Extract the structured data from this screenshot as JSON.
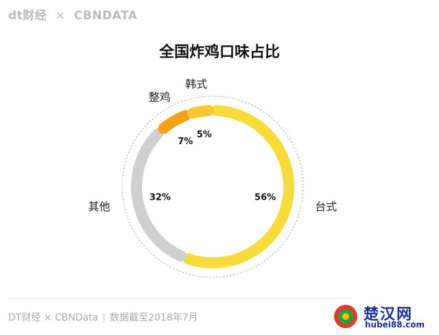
{
  "header": {
    "brand_left": "dt财经",
    "separator": "×",
    "brand_right": "CBNDATA"
  },
  "chart_data": {
    "type": "pie",
    "title": "全国炸鸡口味占比",
    "slices": [
      {
        "name": "台式",
        "value": 56,
        "label": "56%",
        "color": "#f7db3b"
      },
      {
        "name": "其他",
        "value": 32,
        "label": "32%",
        "color": "#cfcfcf"
      },
      {
        "name": "整鸡",
        "value": 7,
        "label": "7%",
        "color": "#f5a21a"
      },
      {
        "name": "韩式",
        "value": 5,
        "label": "5%",
        "color": "#f7c530"
      }
    ]
  },
  "footer": {
    "source": "DT财经 × CBNData",
    "note": "数据截至2018年7月"
  },
  "watermark": {
    "text": "楚汉网",
    "url": "hubei88.com"
  }
}
